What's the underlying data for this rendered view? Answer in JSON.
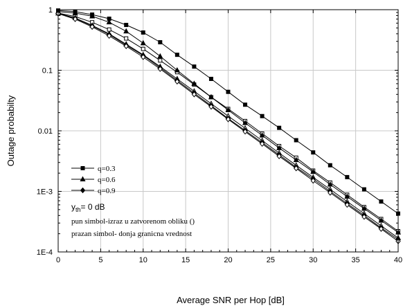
{
  "chart_data": {
    "type": "line",
    "xlabel": "Average SNR per Hop [dB]",
    "ylabel": "Outage probabilty",
    "xlim": [
      0,
      40
    ],
    "ylim": [
      0.0001,
      1
    ],
    "yscale": "log",
    "grid": true,
    "x_ticks": [
      0,
      5,
      10,
      15,
      20,
      25,
      30,
      35,
      40
    ],
    "x_tick_labels": [
      "0",
      "5",
      "10",
      "15",
      "20",
      "25",
      "30",
      "35",
      "40"
    ],
    "y_ticks": [
      1,
      0.1,
      0.01,
      0.001,
      0.0001
    ],
    "y_tick_labels": [
      "1",
      "0.1",
      "0.01",
      "1E-3",
      "1E-4"
    ],
    "x": [
      0,
      2,
      4,
      6,
      8,
      10,
      12,
      14,
      16,
      18,
      20,
      22,
      24,
      26,
      28,
      30,
      32,
      34,
      36,
      38,
      40
    ],
    "legend_position": "lower-left",
    "legend": [
      {
        "label": "q=0.3",
        "marker": "square"
      },
      {
        "label": "q=0.6",
        "marker": "triangle"
      },
      {
        "label": "q=0.9",
        "marker": "diamond"
      }
    ],
    "annotations": {
      "yth_base": "y",
      "yth_sub": "th",
      "yth_rest": "= 0 dB",
      "line1": "pun simbol-izraz u zatvorenom obliku ()",
      "line2": "prazan simbol- donja granicna vrednost"
    },
    "series": [
      {
        "name": "q=0.3",
        "marker": "square",
        "filled": true,
        "values": [
          0.97,
          0.93,
          0.83,
          0.71,
          0.56,
          0.42,
          0.29,
          0.18,
          0.115,
          0.072,
          0.044,
          0.027,
          0.0175,
          0.0112,
          0.007,
          0.0044,
          0.0027,
          0.00172,
          0.00108,
          0.00068,
          0.00043
        ]
      },
      {
        "name": "q=0.3",
        "marker": "square",
        "filled": false,
        "values": [
          0.88,
          0.77,
          0.62,
          0.47,
          0.335,
          0.225,
          0.145,
          0.093,
          0.058,
          0.036,
          0.023,
          0.0145,
          0.009,
          0.0056,
          0.0036,
          0.0022,
          0.0014,
          0.00088,
          0.00055,
          0.00035,
          0.00022
        ]
      },
      {
        "name": "q=0.6",
        "marker": "triangle",
        "filled": true,
        "values": [
          0.93,
          0.88,
          0.78,
          0.62,
          0.44,
          0.28,
          0.17,
          0.1,
          0.06,
          0.036,
          0.022,
          0.0135,
          0.0084,
          0.0052,
          0.0033,
          0.0021,
          0.0013,
          0.00082,
          0.00052,
          0.00033,
          0.00021
        ]
      },
      {
        "name": "q=0.6",
        "marker": "triangle",
        "filled": false,
        "values": [
          0.87,
          0.73,
          0.55,
          0.4,
          0.27,
          0.18,
          0.115,
          0.072,
          0.045,
          0.028,
          0.0175,
          0.011,
          0.0069,
          0.0043,
          0.0027,
          0.0017,
          0.00108,
          0.00068,
          0.00043,
          0.00027,
          0.00017
        ]
      },
      {
        "name": "q=0.9",
        "marker": "diamond",
        "filled": true,
        "values": [
          0.87,
          0.72,
          0.54,
          0.39,
          0.26,
          0.175,
          0.11,
          0.068,
          0.042,
          0.026,
          0.016,
          0.0101,
          0.0064,
          0.004,
          0.0025,
          0.0016,
          0.001,
          0.00063,
          0.0004,
          0.00025,
          0.00016
        ]
      },
      {
        "name": "q=0.9",
        "marker": "diamond",
        "filled": false,
        "values": [
          0.86,
          0.7,
          0.52,
          0.37,
          0.25,
          0.165,
          0.105,
          0.065,
          0.04,
          0.025,
          0.0155,
          0.0097,
          0.0061,
          0.0038,
          0.0024,
          0.0015,
          0.00095,
          0.0006,
          0.00038,
          0.00024,
          0.00015
        ]
      }
    ]
  }
}
